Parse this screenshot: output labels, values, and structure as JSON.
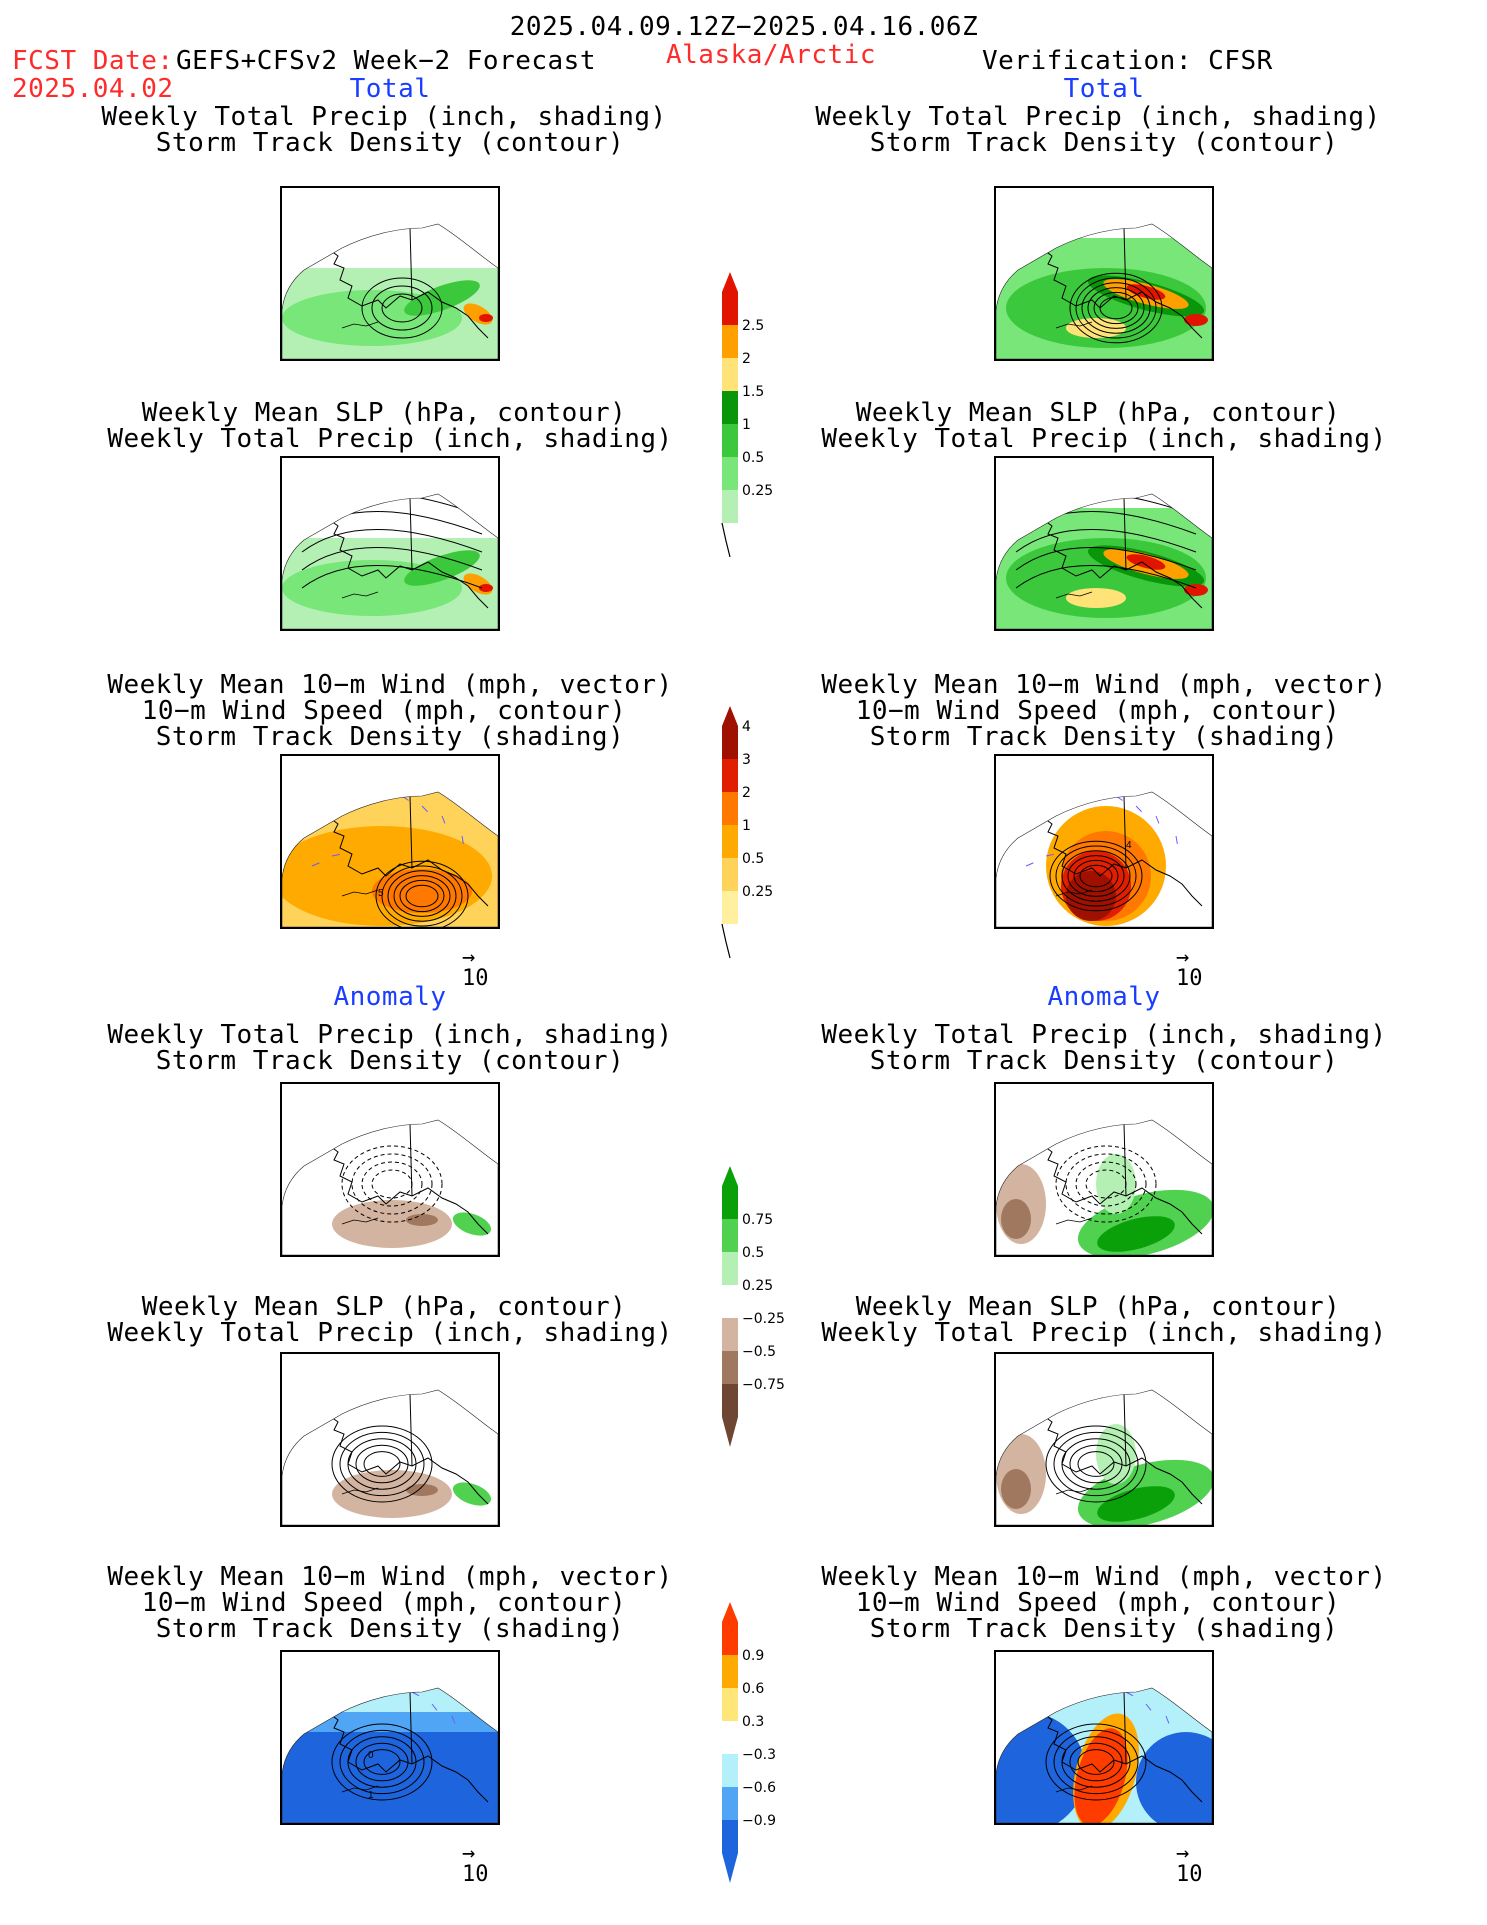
{
  "header": {
    "date_range": "2025.04.09.12Z−2025.04.16.06Z",
    "fcst_label": "FCST Date:",
    "fcst_model": "GEFS+CFSv2 Week−2 Forecast",
    "fcst_date": "2025.04.02",
    "region": "Alaska/Arctic",
    "verification": "Verification: CFSR"
  },
  "sections": {
    "total_left": "Total",
    "total_right": "Total",
    "anomaly_left": "Anomaly",
    "anomaly_right": "Anomaly"
  },
  "titles": {
    "precip_storm": [
      "Weekly Total Precip (inch, shading)",
      "Storm Track Density (contour)"
    ],
    "slp_precip": [
      "Weekly Mean SLP (hPa, contour)",
      "Weekly Total Precip (inch, shading)"
    ],
    "wind_storm": [
      "Weekly Mean 10−m Wind (mph, vector)",
      "10−m Wind Speed (mph, contour)",
      "Storm Track Density (shading)"
    ]
  },
  "ref_vector": {
    "arrow": "→",
    "label": "10"
  },
  "colors": {
    "precip": [
      "#b4f0b4",
      "#78e678",
      "#3cc83c",
      "#0a960a",
      "#ffe278",
      "#ffa000",
      "#e11400"
    ],
    "storm_total": [
      "#fff0a0",
      "#ffd25a",
      "#ffaa00",
      "#ff7800",
      "#e11e00",
      "#a01000"
    ],
    "precip_anom": [
      "#6e4632",
      "#a07860",
      "#d2b4a0",
      "#ffffff",
      "#b4f0b4",
      "#50d250",
      "#0aa00a"
    ],
    "storm_anom": [
      "#1e64dc",
      "#50a5f5",
      "#b4f0fa",
      "#ffffff",
      "#ffe678",
      "#ffaa00",
      "#ff3c00"
    ]
  },
  "chart_data": [
    {
      "type": "heatmap",
      "name": "total_precip_colorbar",
      "levels": [
        "0.25",
        "0.5",
        "1",
        "1.5",
        "2",
        "2.5"
      ]
    },
    {
      "type": "heatmap",
      "name": "total_storm_colorbar",
      "levels": [
        "0.25",
        "0.5",
        "1",
        "2",
        "3",
        "4"
      ]
    },
    {
      "type": "heatmap",
      "name": "anom_precip_colorbar",
      "levels": [
        "−0.75",
        "−0.5",
        "−0.25",
        "0.25",
        "0.5",
        "0.75"
      ]
    },
    {
      "type": "heatmap",
      "name": "anom_storm_colorbar",
      "levels": [
        "−0.9",
        "−0.6",
        "−0.3",
        "0.3",
        "0.6",
        "0.9"
      ]
    },
    {
      "type": "heatmap",
      "panel": "fcst_total_wind",
      "contour_labels": [
        "5"
      ]
    },
    {
      "type": "heatmap",
      "panel": "cfsr_total_wind",
      "contour_labels": [
        "4"
      ]
    },
    {
      "type": "heatmap",
      "panel": "fcst_anom_wind",
      "contour_labels": [
        "0",
        "1"
      ]
    }
  ]
}
